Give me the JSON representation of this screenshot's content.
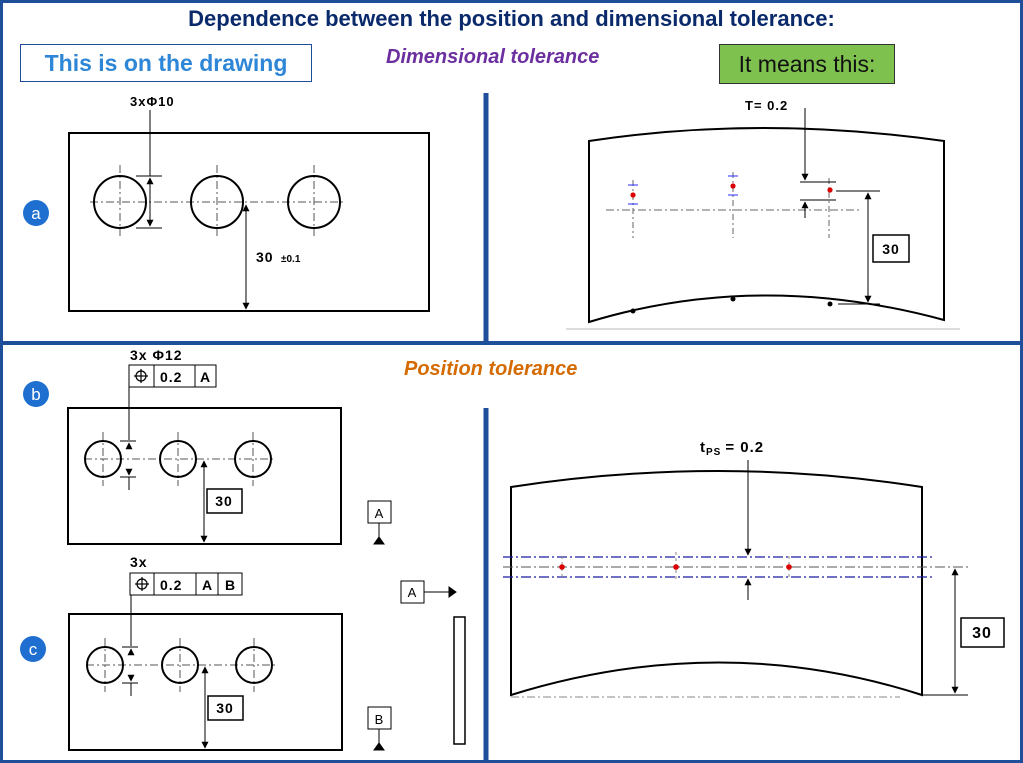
{
  "header": {
    "title": "Dependence between the position and dimensional tolerance:",
    "on_drawing_label": "This is on the drawing",
    "dimensional_tolerance_label": "Dimensional tolerance",
    "it_means_label": "It means this:",
    "position_tolerance_label": "Position tolerance"
  },
  "colors": {
    "frame_blue": "#1f4e9a",
    "title_navy": "#0a2a6b",
    "drawing_box_text": "#2e86d6",
    "dimensional_purple": "#6b2fa0",
    "position_orange": "#d46a00",
    "means_box_green": "#7ec14e",
    "marker_red": "#dd0000",
    "tolerance_zone_blue": "#1a1aa0",
    "circle_badge": "#1f6fd1"
  },
  "panel_a": {
    "badge": "a",
    "hole_callout": "3xΦ10",
    "dimension": "30",
    "tolerance": "±0.1",
    "result_tolerance_label": "T= 0.2",
    "result_dimension": "30"
  },
  "panel_b": {
    "badge": "b",
    "hole_callout": "3x Φ12",
    "fcf_symbol": "position-icon",
    "fcf_value": "0.2",
    "fcf_datum_1": "A",
    "dimension": "30",
    "datum_label": "A"
  },
  "panel_c": {
    "badge": "c",
    "hole_callout": "3x",
    "fcf_symbol": "position-icon",
    "fcf_value": "0.2",
    "fcf_datum_1": "A",
    "fcf_datum_2": "B",
    "dimension": "30",
    "datum_label_b": "B",
    "side_view_datum": "A"
  },
  "panel_position_result": {
    "tolerance_label_main": "t",
    "tolerance_label_sub": "PS",
    "tolerance_label_value": "= 0.2",
    "dimension": "30"
  }
}
